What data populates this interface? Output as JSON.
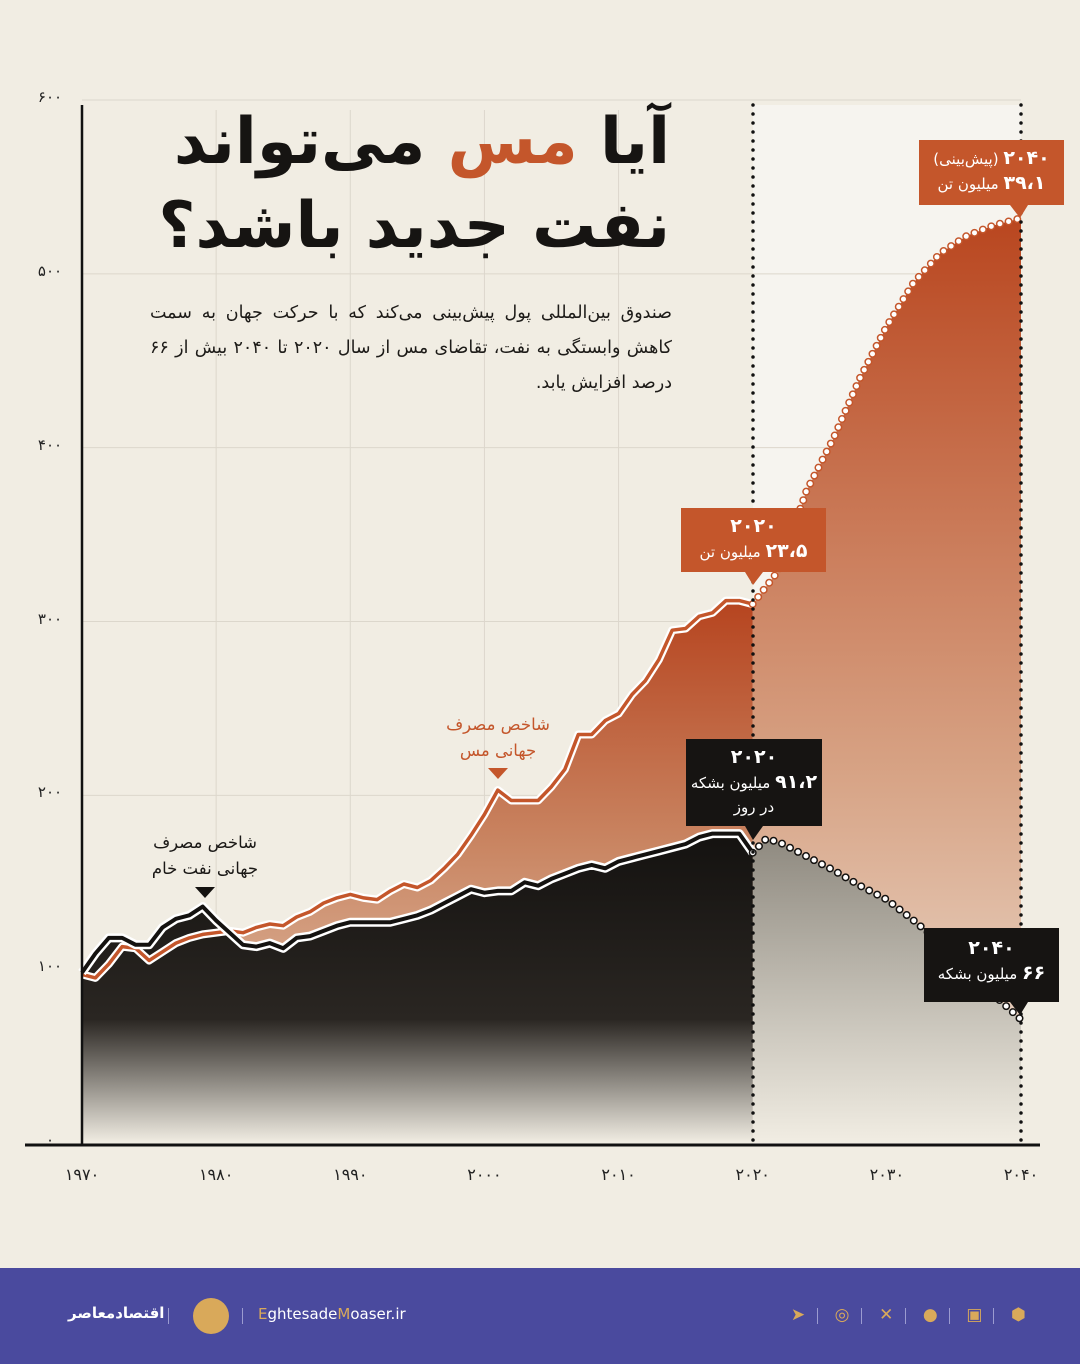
{
  "title": {
    "line1_a": "آیا ",
    "line1_highlight": "مس",
    "line1_b": " می‌تواند",
    "line2": "نفت جدید باشد؟"
  },
  "subtitle": "صندوق بین‌المللی پول پیش‌بینی می‌کند که با حرکت جهان به سمت کاهش وابستگی به نفت، تقاضای مس از سال ۲۰۲۰ تا ۲۰۴۰ بیش از ۶۶ درصد افزایش یابد.",
  "colors": {
    "copper": "#c4562b",
    "oil": "#141210",
    "background": "#f1ede3",
    "footer": "#4a4a9e",
    "accent_gold": "#d9a95a"
  },
  "chart_data": {
    "type": "area",
    "ylim": [
      0,
      600
    ],
    "xlim": [
      1970,
      2040
    ],
    "grid": true,
    "y_ticks": [
      0,
      100,
      200,
      300,
      400,
      500,
      600
    ],
    "y_tick_labels": [
      "۰",
      "۱۰۰",
      "۲۰۰",
      "۳۰۰",
      "۴۰۰",
      "۵۰۰",
      "۶۰۰"
    ],
    "x_ticks": [
      1970,
      1980,
      1990,
      2000,
      2010,
      2020,
      2030,
      2040
    ],
    "x_tick_labels": [
      "۱۹۷۰",
      "۱۹۸۰",
      "۱۹۹۰",
      "۲۰۰۰",
      "۲۰۱۰",
      "۲۰۲۰",
      "۲۰۳۰",
      "۲۰۴۰"
    ],
    "series": [
      {
        "name": "شاخص مصرف جهانی مس",
        "name_line1": "شاخص مصرف",
        "name_line2": "جهانی مس",
        "color": "#c4562b",
        "x": [
          1970,
          1971,
          1972,
          1973,
          1974,
          1975,
          1976,
          1977,
          1978,
          1979,
          1980,
          1981,
          1982,
          1983,
          1984,
          1985,
          1986,
          1987,
          1988,
          1989,
          1990,
          1991,
          1992,
          1993,
          1994,
          1995,
          1996,
          1997,
          1998,
          1999,
          2000,
          2001,
          2002,
          2003,
          2004,
          2005,
          2006,
          2007,
          2008,
          2009,
          2010,
          2011,
          2012,
          2013,
          2014,
          2015,
          2016,
          2017,
          2018,
          2019,
          2020
        ],
        "values": [
          97,
          95,
          103,
          113,
          112,
          105,
          110,
          115,
          118,
          120,
          121,
          122,
          121,
          124,
          126,
          125,
          130,
          133,
          138,
          141,
          143,
          141,
          140,
          145,
          149,
          147,
          151,
          158,
          166,
          177,
          189,
          203,
          197,
          197,
          197,
          205,
          215,
          235,
          235,
          243,
          247,
          258,
          266,
          278,
          295,
          296,
          303,
          305,
          312,
          312,
          310
        ],
        "forecast_x": [
          2020,
          2022,
          2024,
          2026,
          2028,
          2030,
          2032,
          2034,
          2036,
          2038,
          2040
        ],
        "forecast_values": [
          310,
          330,
          375,
          405,
          440,
          470,
          495,
          512,
          522,
          528,
          532
        ]
      },
      {
        "name": "شاخص مصرف جهانی نفت خام",
        "name_line1": "شاخص مصرف",
        "name_line2": "جهانی نفت خام",
        "color": "#141210",
        "x": [
          1970,
          1971,
          1972,
          1973,
          1974,
          1975,
          1976,
          1977,
          1978,
          1979,
          1980,
          1981,
          1982,
          1983,
          1984,
          1985,
          1986,
          1987,
          1988,
          1989,
          1990,
          1991,
          1992,
          1993,
          1994,
          1995,
          1996,
          1997,
          1998,
          1999,
          2000,
          2001,
          2002,
          2003,
          2004,
          2005,
          2006,
          2007,
          2008,
          2009,
          2010,
          2011,
          2012,
          2013,
          2014,
          2015,
          2016,
          2017,
          2018,
          2019,
          2020
        ],
        "values": [
          98,
          109,
          118,
          118,
          114,
          114,
          124,
          129,
          131,
          136,
          128,
          121,
          114,
          113,
          115,
          112,
          118,
          119,
          122,
          125,
          127,
          127,
          127,
          127,
          129,
          131,
          134,
          138,
          142,
          146,
          144,
          145,
          145,
          150,
          148,
          152,
          155,
          158,
          160,
          158,
          162,
          164,
          166,
          168,
          170,
          172,
          176,
          178,
          178,
          178,
          167
        ],
        "forecast_x": [
          2020,
          2021,
          2022,
          2024,
          2026,
          2028,
          2030,
          2032,
          2034,
          2036,
          2038,
          2040
        ],
        "forecast_values": [
          167,
          175,
          173,
          165,
          157,
          148,
          140,
          128,
          115,
          100,
          85,
          71
        ]
      }
    ],
    "callouts": {
      "copper_2020": {
        "year": "۲۰۲۰",
        "value": "۲۳،۵",
        "unit": "میلیون تن"
      },
      "copper_2040": {
        "year": "۲۰۴۰",
        "note": "(پیش‌بینی)",
        "value": "۳۹،۱",
        "unit": "میلیون تن"
      },
      "oil_2020": {
        "year": "۲۰۲۰",
        "value": "۹۱،۲",
        "unit": "میلیون بشکه",
        "unit2": "در روز"
      },
      "oil_2040": {
        "year": "۲۰۴۰",
        "value": "۶۶",
        "unit": "میلیون بشکه"
      }
    }
  },
  "footer": {
    "brand_name": "اقتصادمعاصر",
    "website_e": "E",
    "website_mid": "ghtesade",
    "website_m": "M",
    "website_end": "oaser.ir",
    "social_icons": [
      "telegram-icon",
      "instagram-icon",
      "x-icon",
      "bale-icon",
      "eitaa-icon",
      "rubika-icon"
    ]
  }
}
